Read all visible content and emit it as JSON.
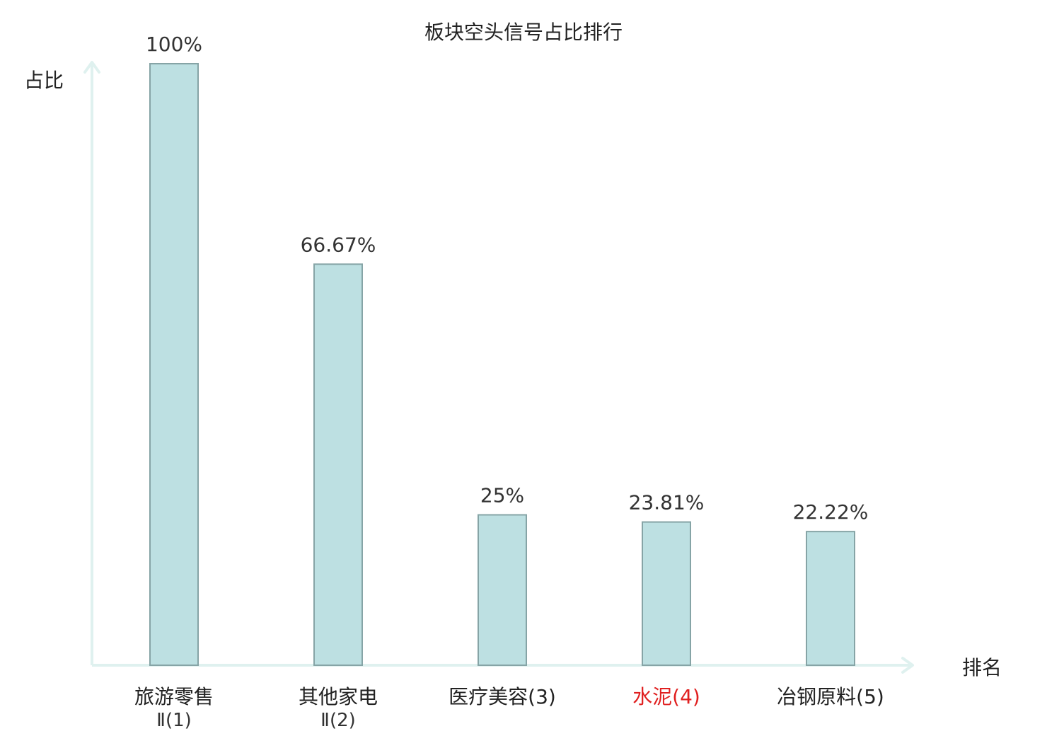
{
  "chart_data": {
    "type": "bar",
    "title": "板块空头信号占比排行",
    "xlabel": "排名",
    "ylabel": "占比",
    "categories": [
      {
        "line1": "旅游零售",
        "line2": "Ⅱ(1)",
        "name": "旅游零售Ⅱ",
        "rank": "(1)",
        "highlight": false
      },
      {
        "line1": "其他家电",
        "line2": "Ⅱ(2)",
        "name": "其他家电Ⅱ",
        "rank": "(2)",
        "highlight": false
      },
      {
        "line1": "医疗美容(3)",
        "line2": "",
        "name": "医疗美容",
        "rank": "(3)",
        "highlight": false
      },
      {
        "line1": "水泥(4)",
        "line2": "",
        "name": "水泥",
        "rank": "(4)",
        "highlight": true
      },
      {
        "line1": "冶钢原料(5)",
        "line2": "",
        "name": "冶钢原料",
        "rank": "(5)",
        "highlight": false
      }
    ],
    "values": [
      100,
      66.67,
      25,
      23.81,
      22.22
    ],
    "data_labels": [
      "100%",
      "66.67%",
      "25%",
      "23.81%",
      "22.22%"
    ],
    "ylim": [
      0,
      100
    ],
    "grid": false,
    "legend": "none",
    "colors": {
      "bar_fill": "#bde0e2",
      "bar_stroke": "#86a4a6",
      "axis": "#dff1ef",
      "text": "#333333",
      "highlight_text": "#e02020"
    }
  }
}
